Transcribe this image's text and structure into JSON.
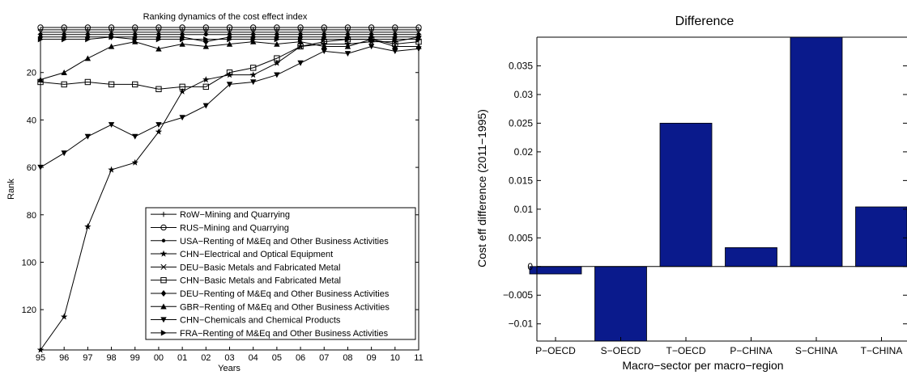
{
  "chart_data": [
    {
      "type": "line",
      "title": "Ranking dynamics of the cost effect index",
      "xlabel": "Years",
      "ylabel": "Rank",
      "x": [
        "95",
        "96",
        "97",
        "98",
        "99",
        "00",
        "01",
        "02",
        "03",
        "04",
        "05",
        "06",
        "07",
        "08",
        "09",
        "10",
        "11"
      ],
      "y_reversed": true,
      "ylim": [
        1,
        137
      ],
      "yticks": [
        "20",
        "40",
        "60",
        "80",
        "100",
        "120"
      ],
      "grid": false,
      "legend_position": "bottom-right",
      "series": [
        {
          "name": "RoW−Mining and Quarrying",
          "marker": "plus",
          "values": [
            2,
            2,
            2,
            2,
            2,
            2,
            2,
            2,
            2,
            2,
            2,
            2,
            2,
            2,
            2,
            2,
            2
          ]
        },
        {
          "name": "RUS−Mining and Quarrying",
          "marker": "circle",
          "values": [
            1,
            1,
            1,
            1,
            1,
            1,
            1,
            1,
            1,
            1,
            1,
            1,
            1,
            1,
            1,
            1,
            1
          ]
        },
        {
          "name": "USA−Renting of M&Eq and Other Business Activities",
          "marker": "dot",
          "values": [
            4,
            4,
            4,
            4,
            4,
            4,
            4,
            4,
            4,
            4,
            4,
            4,
            4,
            4,
            4,
            4,
            4
          ]
        },
        {
          "name": "CHN−Electrical and Optical Equipment",
          "marker": "star",
          "values": [
            137,
            123,
            85,
            61,
            58,
            45,
            28,
            23,
            21,
            21,
            16,
            9,
            8,
            8,
            7,
            7,
            5
          ]
        },
        {
          "name": "DEU−Basic Metals and Fabricated Metal",
          "marker": "x",
          "values": [
            3,
            3,
            3,
            3,
            3,
            3,
            3,
            3,
            3,
            3,
            3,
            3,
            3,
            3,
            3,
            3,
            3
          ]
        },
        {
          "name": "CHN−Basic Metals and Fabricated Metal",
          "marker": "square",
          "values": [
            24,
            25,
            24,
            25,
            25,
            27,
            26,
            26,
            20,
            18,
            14,
            9,
            7,
            6,
            6,
            8,
            7
          ]
        },
        {
          "name": "DEU−Renting of M&Eq and Other Business Activities",
          "marker": "diamond",
          "values": [
            5,
            5,
            5,
            5,
            5,
            5,
            5,
            7,
            5,
            5,
            5,
            5,
            5,
            5,
            5,
            5,
            5
          ]
        },
        {
          "name": "GBR−Renting of M&Eq and Other Business Activities",
          "marker": "triangle-up",
          "values": [
            23,
            20,
            14,
            9,
            7,
            10,
            8,
            9,
            8,
            7,
            8,
            7,
            9,
            9,
            6,
            9,
            9
          ]
        },
        {
          "name": "CHN−Chemicals and Chemical Products",
          "marker": "triangle-down",
          "values": [
            60,
            54,
            47,
            42,
            47,
            42,
            39,
            34,
            25,
            24,
            21,
            16,
            11,
            12,
            9,
            11,
            10
          ]
        },
        {
          "name": "FRA−Renting of M&Eq and Other Business Activities",
          "marker": "triangle-right",
          "values": [
            6,
            6,
            6,
            5,
            6,
            6,
            6,
            6,
            6,
            6,
            6,
            6,
            6,
            6,
            6,
            6,
            6
          ]
        }
      ]
    },
    {
      "type": "bar",
      "title": "Difference",
      "xlabel": "Macro−sector per macro−region",
      "ylabel": "Cost eff difference (2011−1995)",
      "categories": [
        "P−OECD",
        "S−OECD",
        "T−OECD",
        "P−CHINA",
        "S−CHINA",
        "T−CHINA"
      ],
      "values": [
        -0.0013,
        -0.013,
        0.025,
        0.0033,
        0.04,
        0.0104
      ],
      "ylim": [
        -0.013,
        0.04
      ],
      "yticks": [
        "−0.01",
        "−0.005",
        "0",
        "0.005",
        "0.01",
        "0.015",
        "0.02",
        "0.025",
        "0.03",
        "0.035"
      ],
      "grid": false,
      "bar_color": "#0a1a8c"
    }
  ]
}
